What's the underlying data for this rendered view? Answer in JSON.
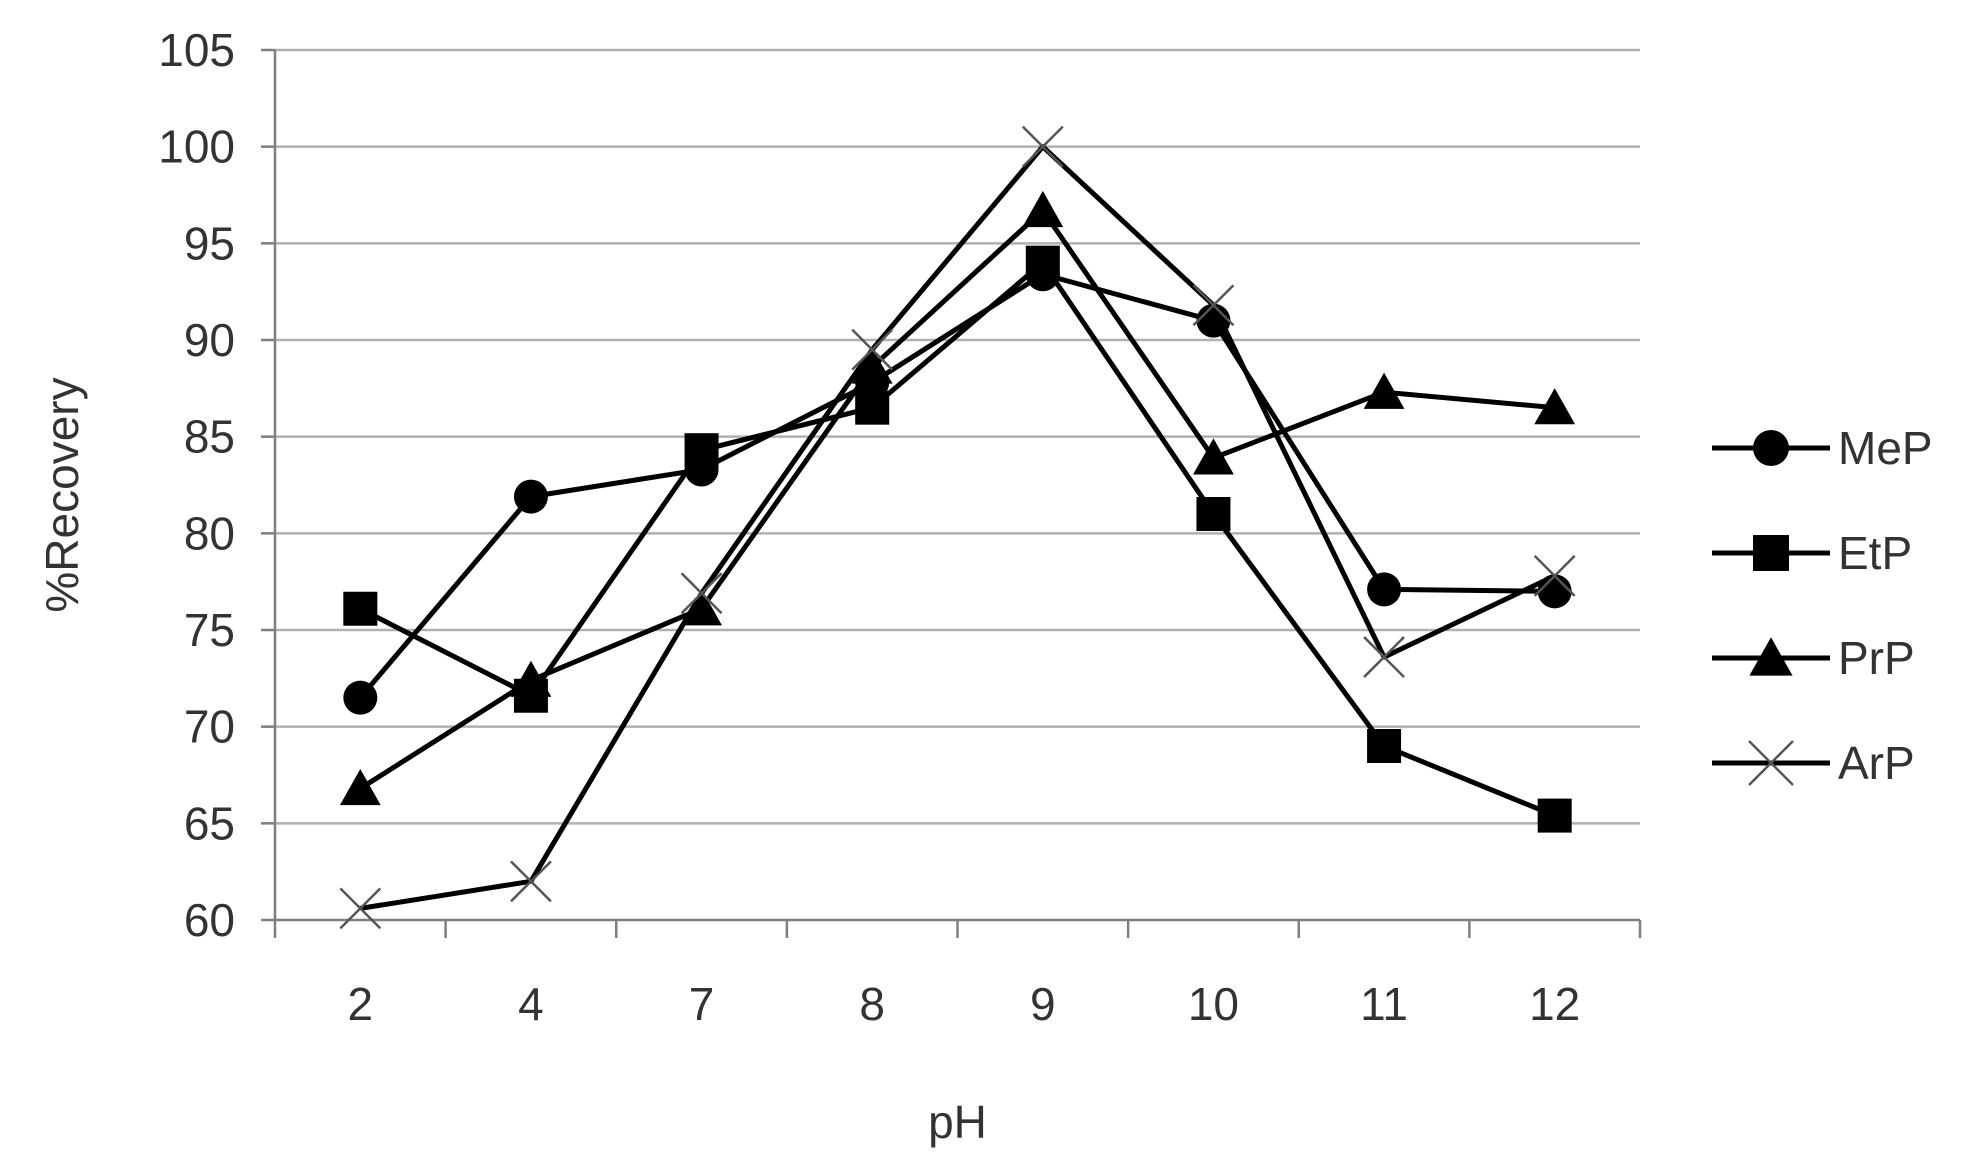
{
  "chart_data": {
    "type": "line",
    "title": "",
    "xlabel": "pH",
    "ylabel": "%Recovery",
    "categories": [
      "2",
      "4",
      "7",
      "8",
      "9",
      "10",
      "11",
      "12"
    ],
    "ylim": [
      60,
      105
    ],
    "yticks": [
      60,
      65,
      70,
      75,
      80,
      85,
      90,
      95,
      100,
      105
    ],
    "grid": "horizontal",
    "legend_position": "right",
    "series": [
      {
        "name": "MeP",
        "marker": "circle",
        "values": [
          71.5,
          81.9,
          83.3,
          87.8,
          93.4,
          91.0,
          77.1,
          77.0
        ]
      },
      {
        "name": "EtP",
        "marker": "square",
        "values": [
          76.1,
          71.6,
          84.3,
          86.5,
          94.0,
          81.0,
          69.0,
          65.4
        ]
      },
      {
        "name": "PrP",
        "marker": "triangle",
        "values": [
          66.8,
          72.4,
          76.1,
          88.6,
          96.7,
          83.9,
          87.3,
          86.5
        ]
      },
      {
        "name": "ArP",
        "marker": "x",
        "values": [
          60.6,
          62.0,
          76.9,
          89.5,
          100.0,
          91.8,
          73.6,
          77.8
        ]
      }
    ],
    "colors": {
      "line": "#000000",
      "grid": "#b0b0b0",
      "axis": "#7f7f7f",
      "text": "#333333"
    }
  }
}
